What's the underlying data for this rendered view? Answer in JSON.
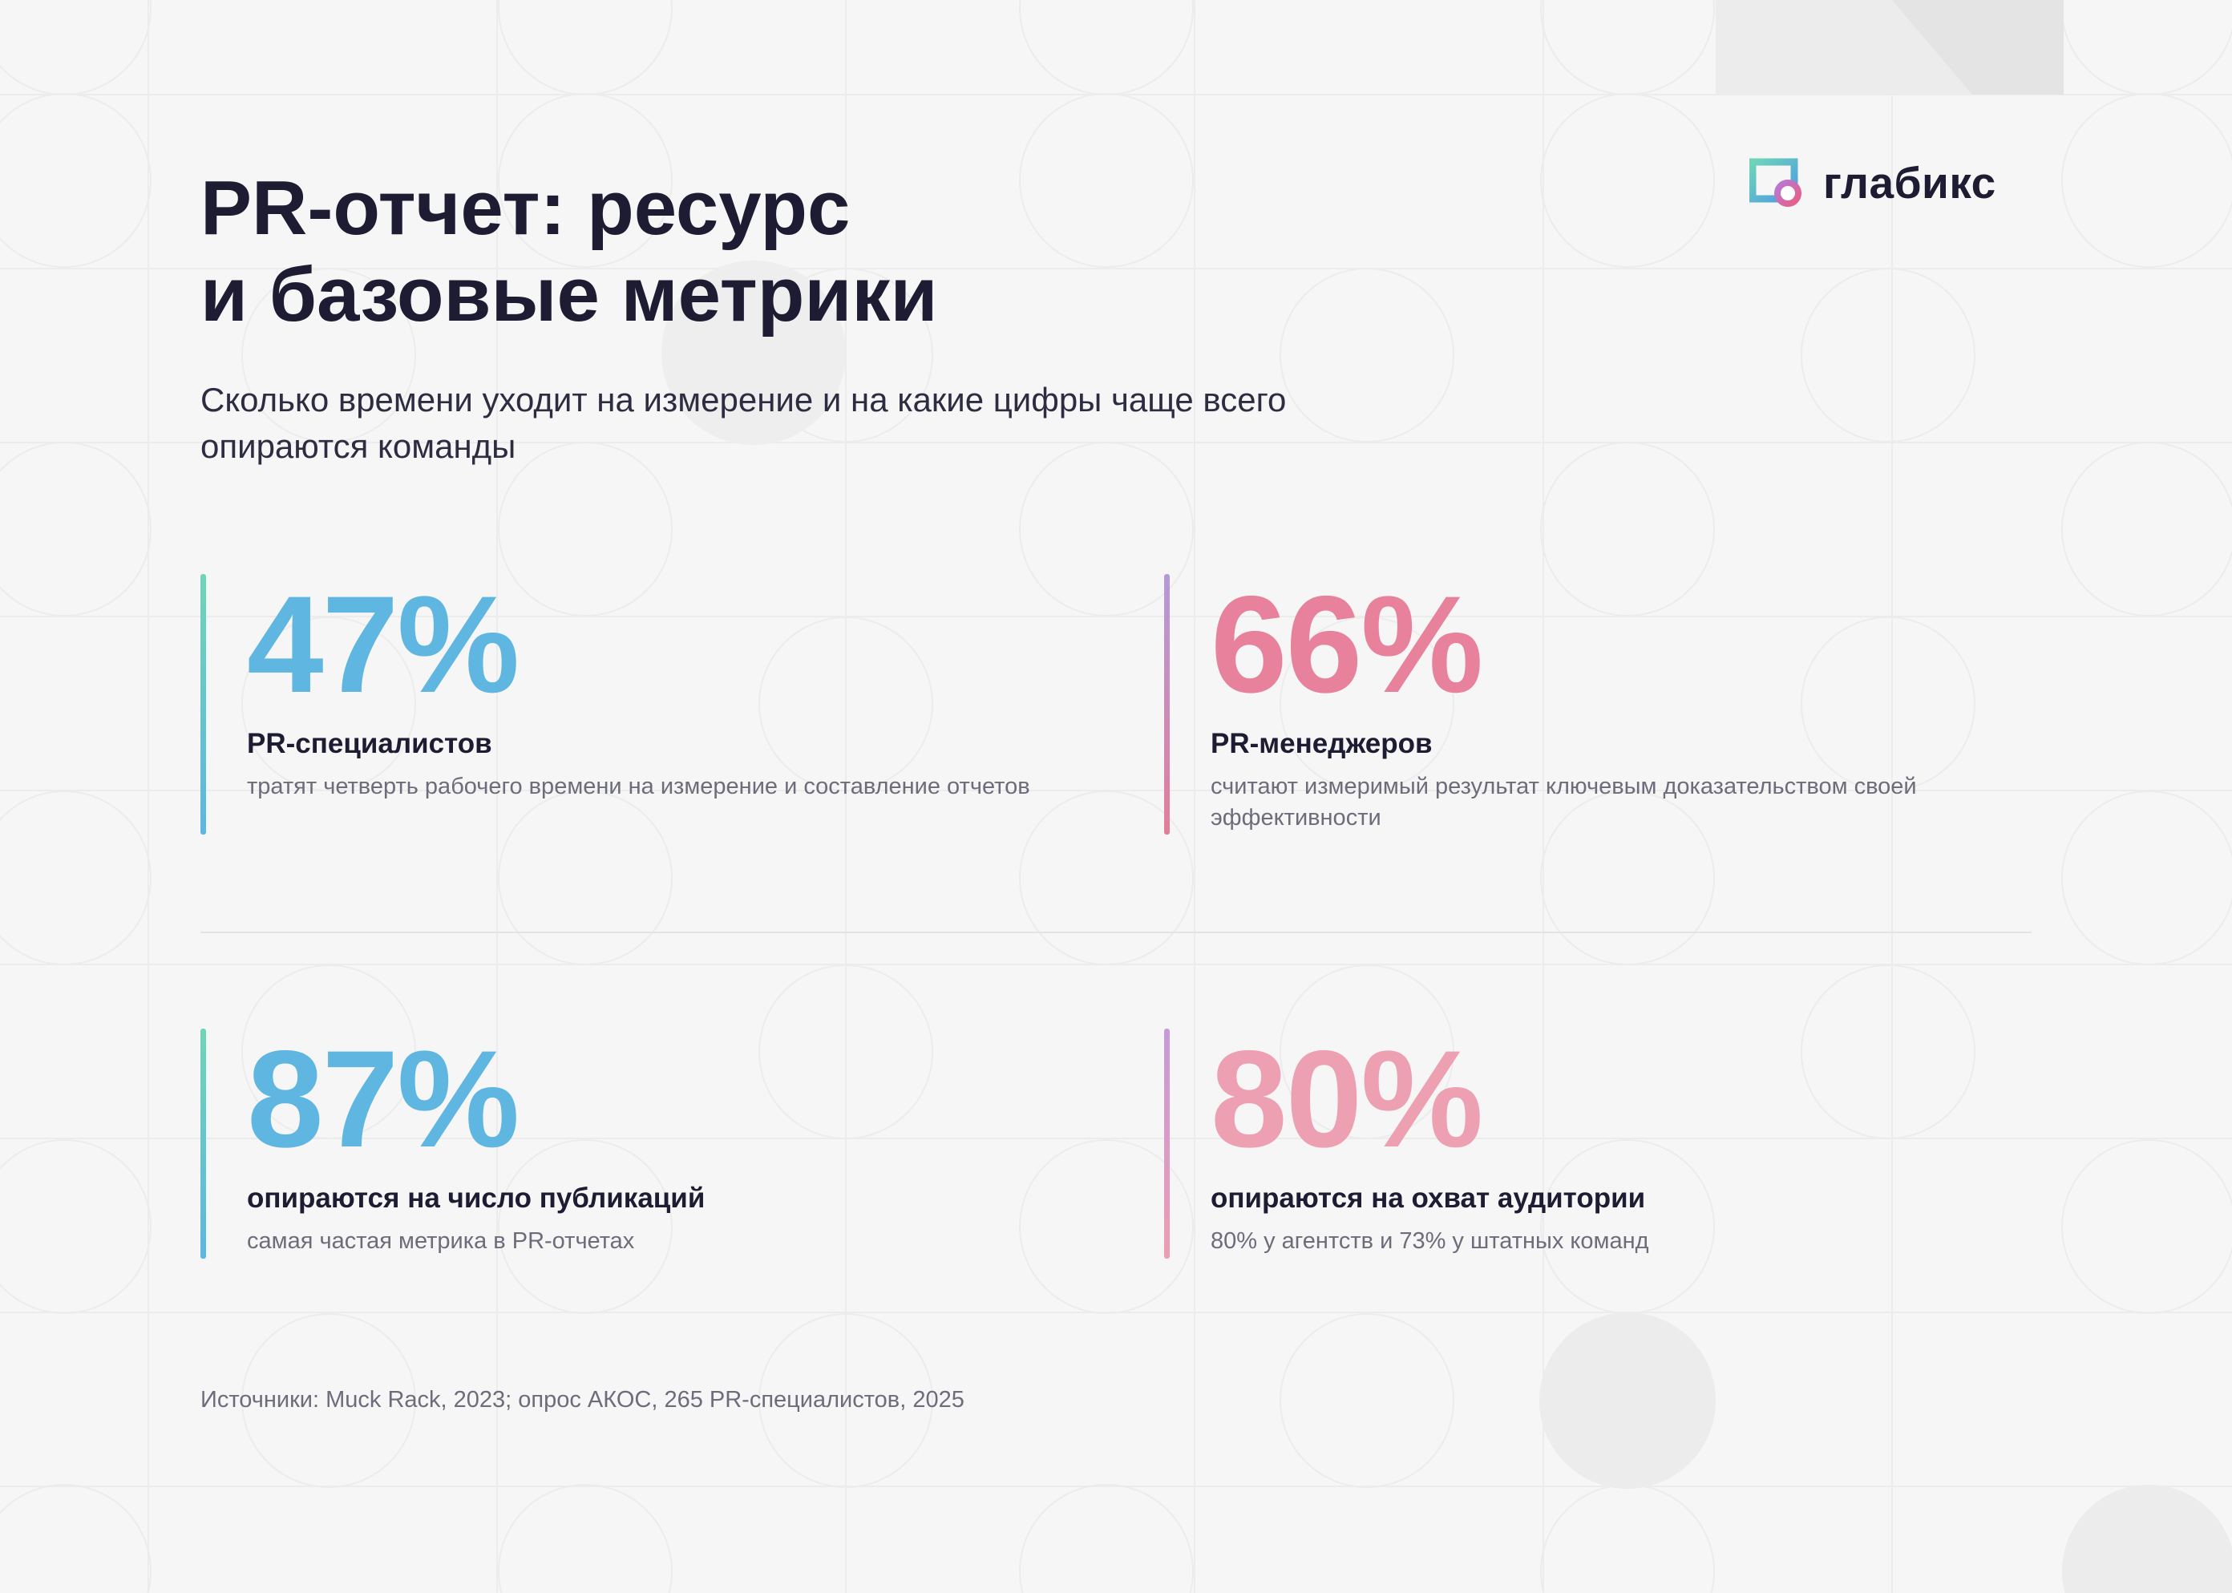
{
  "brand": {
    "name": "глабикс"
  },
  "title": {
    "line1": "PR-отчет: ресурс",
    "line2": "и базовые метрики"
  },
  "subtitle": {
    "line1": "Сколько времени уходит на измерение и на какие цифры чаще всего",
    "line2": "опираются команды"
  },
  "stats": [
    {
      "value": "47%",
      "label": "PR-специалистов",
      "description": "тратят четверть рабочего времени на измерение и составление отчетов",
      "color": "#5fb6e0"
    },
    {
      "value": "66%",
      "label": "PR-менеджеров",
      "description": "считают измеримый результат ключевым доказательством своей эффективности",
      "color": "#e8819b"
    },
    {
      "value": "87%",
      "label": "опираются на число публикаций",
      "description": "самая частая метрика в PR-отчетах",
      "color": "#5fb6e0"
    },
    {
      "value": "80%",
      "label": "опираются на охват аудитории",
      "description": "80% у агентств и 73% у штатных команд",
      "color": "#eda0b2"
    }
  ],
  "source": "Источники: Muck Rack, 2023; опрос АКОС, 265 PR-специалистов, 2025",
  "colors": {
    "background": "#f6f6f6",
    "text_dark": "#1d1c33",
    "text_muted": "#6d6c7b",
    "accent_blue": "#5fb6e0",
    "accent_pink": "#e8819b",
    "accent_green": "#6fd5b7",
    "accent_purple": "#b49ad9"
  },
  "icons": {
    "logo": "glabix-logo-icon"
  }
}
